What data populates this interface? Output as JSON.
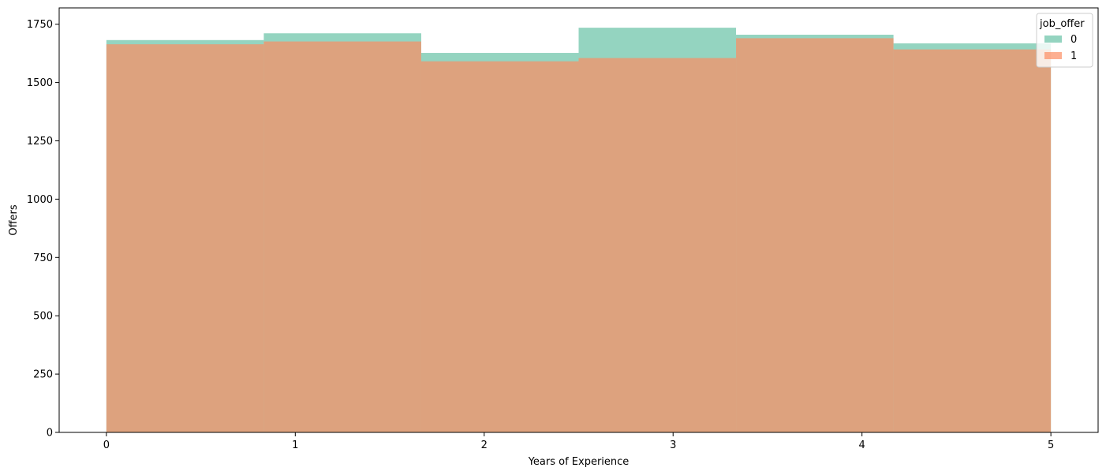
{
  "chart_data": {
    "type": "bar",
    "subtype": "overlaid-histogram",
    "title": "",
    "xlabel": "Years of Experience",
    "ylabel": "Offers",
    "xlim": [
      -0.25,
      5.25
    ],
    "ylim": [
      0,
      1820
    ],
    "bin_edges": [
      0,
      0.8333,
      1.6667,
      2.5,
      3.3333,
      4.1667,
      5
    ],
    "x_ticks": [
      0,
      1,
      2,
      3,
      4,
      5
    ],
    "y_ticks": [
      0,
      250,
      500,
      750,
      1000,
      1250,
      1500,
      1750
    ],
    "grid": false,
    "legend": {
      "title": "job_offer",
      "position": "top-right"
    },
    "series": [
      {
        "name": "0",
        "color": "#66c2a5",
        "opacity": 0.7,
        "values": [
          1682,
          1711,
          1627,
          1735,
          1705,
          1668
        ]
      },
      {
        "name": "1",
        "color": "#fc8d62",
        "opacity": 0.7,
        "values": [
          1664,
          1676,
          1591,
          1605,
          1690,
          1642
        ]
      }
    ]
  }
}
